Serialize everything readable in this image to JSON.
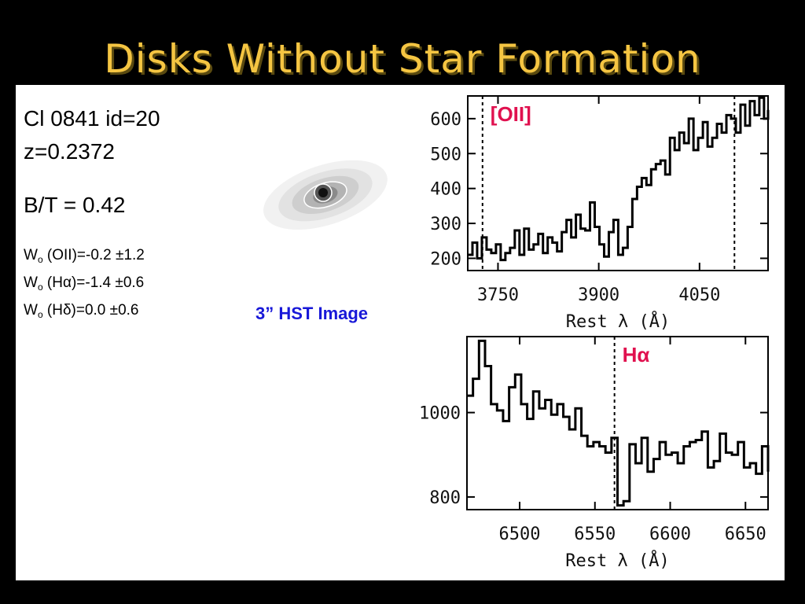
{
  "title": "Disks Without Star Formation",
  "object": {
    "name": "Cl 0841 id=20",
    "redshift": "z=0.2372",
    "bt_ratio": "B/T = 0.42"
  },
  "equivalent_widths": [
    {
      "symbol": "W",
      "subscript": "o",
      "line": "(OII)",
      "value": "=-0.2 ±1.2"
    },
    {
      "symbol": "W",
      "subscript": "o",
      "line": "(Hα)",
      "value": "=-1.4 ±0.6"
    },
    {
      "symbol": "W",
      "subscript": "o",
      "line": "(Hδ)",
      "value": "=0.0 ±0.6"
    }
  ],
  "image_caption": "3” HST Image",
  "colors": {
    "title": "#f5c542",
    "caption": "#1818d8",
    "line_marker": "#e0114f"
  },
  "chart_data": [
    {
      "type": "line",
      "xlabel": "Rest λ (Å)",
      "ylabel": "",
      "xlim": [
        3705,
        4152
      ],
      "ylim": [
        165,
        665
      ],
      "xticks": [
        3750,
        3900,
        4050
      ],
      "yticks": [
        200,
        300,
        400,
        500,
        600
      ],
      "markers": [
        {
          "x": 3727,
          "label": "[OII]"
        },
        {
          "x": 4102,
          "label": ""
        }
      ],
      "series": [
        {
          "x": [
            3705,
            3712,
            3719,
            3726,
            3733,
            3740,
            3747,
            3754,
            3761,
            3768,
            3775,
            3782,
            3789,
            3796,
            3803,
            3810,
            3817,
            3824,
            3831,
            3838,
            3845,
            3852,
            3859,
            3866,
            3873,
            3880,
            3887,
            3894,
            3901,
            3908,
            3915,
            3922,
            3929,
            3936,
            3943,
            3950,
            3957,
            3964,
            3971,
            3978,
            3985,
            3992,
            3999,
            4006,
            4013,
            4020,
            4027,
            4034,
            4041,
            4048,
            4055,
            4062,
            4069,
            4076,
            4083,
            4090,
            4097,
            4104,
            4111,
            4118,
            4125,
            4132,
            4139,
            4146,
            4152
          ],
          "y": [
            210,
            245,
            200,
            260,
            225,
            215,
            240,
            195,
            215,
            230,
            280,
            210,
            285,
            225,
            240,
            270,
            215,
            260,
            245,
            220,
            275,
            310,
            260,
            325,
            285,
            280,
            360,
            290,
            240,
            205,
            275,
            310,
            210,
            230,
            290,
            370,
            405,
            430,
            410,
            455,
            470,
            480,
            440,
            545,
            510,
            560,
            530,
            600,
            510,
            545,
            590,
            520,
            545,
            585,
            560,
            610,
            600,
            560,
            640,
            580,
            650,
            610,
            660,
            600,
            625
          ]
        }
      ]
    },
    {
      "type": "line",
      "xlabel": "Rest λ (Å)",
      "ylabel": "",
      "xlim": [
        6465,
        6665
      ],
      "ylim": [
        770,
        1180
      ],
      "xticks": [
        6500,
        6550,
        6600,
        6650
      ],
      "yticks": [
        800,
        1000
      ],
      "markers": [
        {
          "x": 6563,
          "label": "Hα"
        }
      ],
      "series": [
        {
          "x": [
            6465,
            6469,
            6473,
            6477,
            6481,
            6485,
            6489,
            6493,
            6497,
            6501,
            6505,
            6509,
            6513,
            6517,
            6521,
            6525,
            6529,
            6533,
            6537,
            6541,
            6545,
            6549,
            6553,
            6557,
            6561,
            6565,
            6569,
            6573,
            6577,
            6581,
            6585,
            6589,
            6593,
            6597,
            6601,
            6605,
            6609,
            6613,
            6617,
            6621,
            6625,
            6629,
            6633,
            6637,
            6641,
            6645,
            6649,
            6653,
            6657,
            6661,
            6665
          ],
          "y": [
            1040,
            1080,
            1170,
            1110,
            1020,
            1005,
            980,
            1060,
            1090,
            1020,
            985,
            1050,
            1010,
            1030,
            995,
            1020,
            990,
            960,
            1010,
            945,
            920,
            930,
            920,
            905,
            940,
            780,
            790,
            925,
            880,
            940,
            860,
            890,
            930,
            900,
            905,
            880,
            920,
            930,
            935,
            955,
            870,
            885,
            950,
            905,
            900,
            930,
            870,
            880,
            855,
            920,
            860
          ]
        }
      ]
    }
  ]
}
